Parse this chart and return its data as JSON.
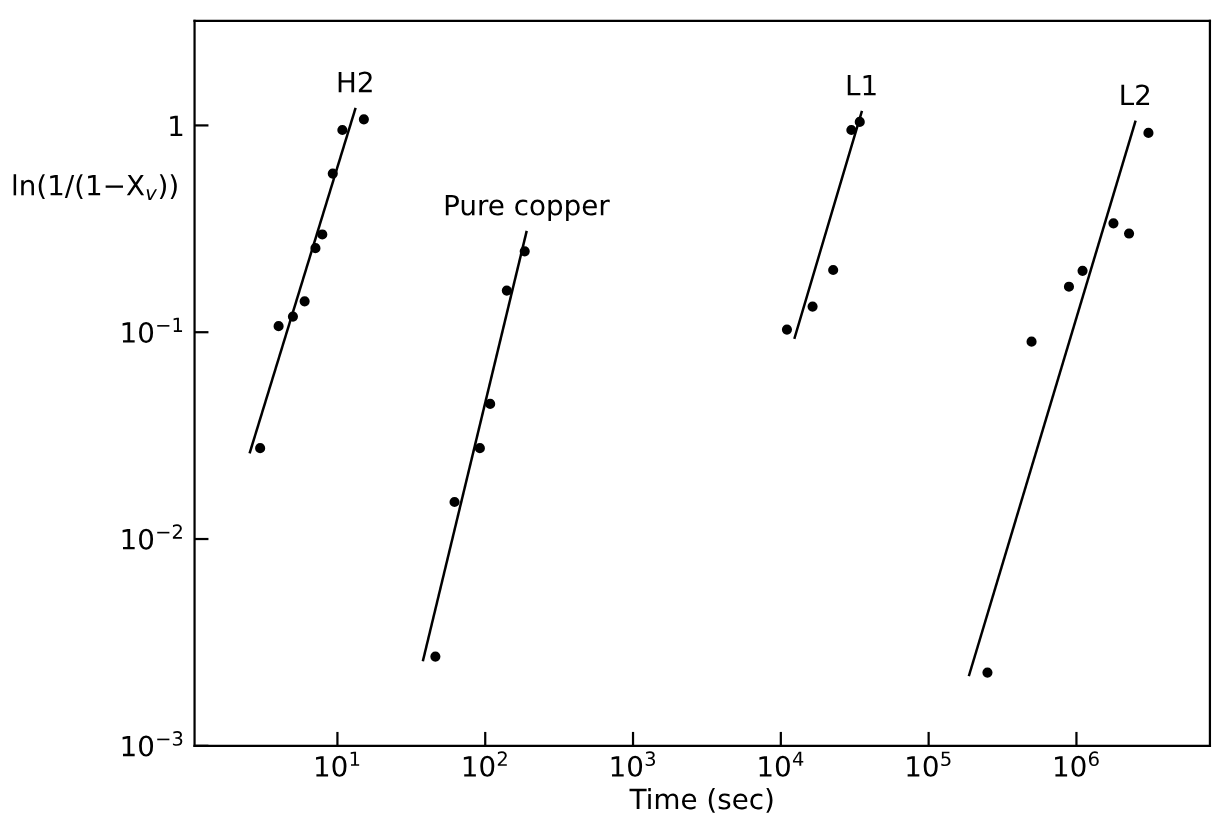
{
  "chart_data": {
    "type": "scatter",
    "xlabel": "Time (sec)",
    "ylabel": "ln(1/(1−X$_{v}$))",
    "log": "xy",
    "grid": false,
    "xlim": [
      1.08,
      8000000
    ],
    "ylim": [
      0.001,
      3.2
    ],
    "xticks": [
      {
        "value": 10,
        "label": "10$^{1}$"
      },
      {
        "value": 100,
        "label": "10$^{2}$"
      },
      {
        "value": 1000,
        "label": "10$^{3}$"
      },
      {
        "value": 10000,
        "label": "10$^{4}$"
      },
      {
        "value": 100000,
        "label": "10$^{5}$"
      },
      {
        "value": 1000000,
        "label": "10$^{6}$"
      }
    ],
    "yticks": [
      {
        "value": 0.001,
        "label": "10$^{−3}$"
      },
      {
        "value": 0.01,
        "label": "10$^{−2}$"
      },
      {
        "value": 0.1,
        "label": "10$^{−1}$"
      },
      1
    ],
    "series": [
      {
        "marker": "circle",
        "color": "#000000",
        "x": [
          3.0,
          4.0,
          5.0,
          6.0,
          7.1,
          7.9,
          9.3,
          10.8,
          15.1
        ],
        "values": [
          0.0275,
          0.107,
          0.119,
          0.141,
          0.255,
          0.297,
          0.585,
          0.95,
          1.07
        ]
      },
      {
        "type": "line",
        "name": "H2",
        "color": "#000000",
        "line_style": "solid",
        "x": [
          2.56,
          13.2
        ],
        "values": [
          0.0263,
          1.2
        ]
      },
      {
        "marker": "circle",
        "color": "#000000",
        "x": [
          46,
          62,
          92,
          108,
          140,
          185
        ],
        "values": [
          0.0027,
          0.0151,
          0.0275,
          0.045,
          0.159,
          0.246
        ]
      },
      {
        "type": "line",
        "name": "Pure copper",
        "color": "#000000",
        "line_style": "solid",
        "x": [
          38,
          190
        ],
        "values": [
          0.0026,
          0.305
        ]
      },
      {
        "marker": "circle",
        "color": "#000000",
        "x": [
          11000,
          16400,
          22600,
          30000,
          34200
        ],
        "values": [
          0.103,
          0.133,
          0.2,
          0.95,
          1.04
        ]
      },
      {
        "type": "line",
        "name": "L1",
        "color": "#000000",
        "line_style": "solid",
        "x": [
          12400,
          35200
        ],
        "values": [
          0.094,
          1.16
        ]
      },
      {
        "marker": "circle",
        "color": "#000000",
        "x": [
          250000,
          497000,
          890000,
          1100000,
          1780000,
          2270000,
          3070000
        ],
        "values": [
          0.00226,
          0.09,
          0.166,
          0.198,
          0.336,
          0.3,
          0.92
        ]
      },
      {
        "type": "line",
        "name": "L2",
        "color": "#000000",
        "line_style": "solid",
        "x": [
          188000,
          2500000
        ],
        "values": [
          0.0022,
          1.04
        ]
      }
    ]
  }
}
